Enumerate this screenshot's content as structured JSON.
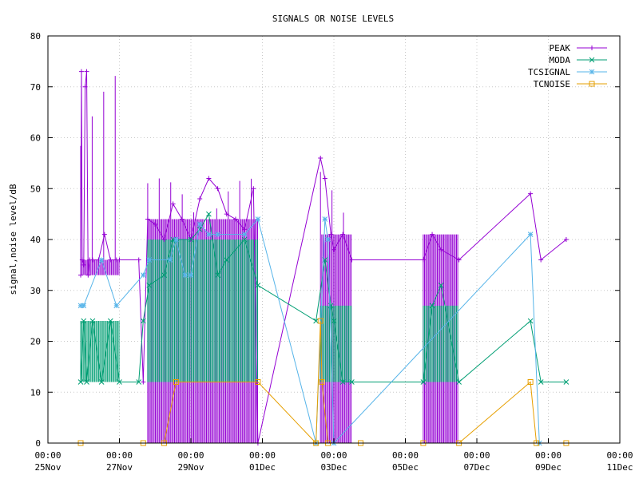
{
  "chart_data": {
    "type": "line",
    "title": "SIGNALS OR NOISE LEVELS",
    "xlabel": "",
    "ylabel": "signal,noise level/dB",
    "xlim": [
      "2023-11-25T00:00",
      "2023-12-11T00:00"
    ],
    "ylim": [
      0,
      80
    ],
    "grid": true,
    "legend_position": "top-right",
    "x_tick_labels": [
      {
        "time": "00:00",
        "date": "25Nov"
      },
      {
        "time": "00:00",
        "date": "27Nov"
      },
      {
        "time": "00:00",
        "date": "29Nov"
      },
      {
        "time": "00:00",
        "date": "01Dec"
      },
      {
        "time": "00:00",
        "date": "03Dec"
      },
      {
        "time": "00:00",
        "date": "05Dec"
      },
      {
        "time": "00:00",
        "date": "07Dec"
      },
      {
        "time": "00:00",
        "date": "09Dec"
      },
      {
        "time": "00:00",
        "date": "11Dec"
      }
    ],
    "y_tick_labels": [
      "0",
      "10",
      "20",
      "30",
      "40",
      "50",
      "60",
      "70",
      "80"
    ],
    "series": [
      {
        "name": "PEAK",
        "color": "#9400d3",
        "marker": "plus",
        "points": [
          [
            "2023-11-25T22:00",
            33
          ],
          [
            "2023-11-25T22:30",
            73
          ],
          [
            "2023-11-25T23:00",
            36
          ],
          [
            "2023-11-26T00:00",
            35
          ],
          [
            "2023-11-26T01:00",
            70
          ],
          [
            "2023-11-26T02:00",
            73
          ],
          [
            "2023-11-26T03:00",
            33
          ],
          [
            "2023-11-26T04:00",
            36
          ],
          [
            "2023-11-26T06:00",
            36
          ],
          [
            "2023-11-26T10:00",
            36
          ],
          [
            "2023-11-26T14:00",
            41
          ],
          [
            "2023-11-26T18:00",
            36
          ],
          [
            "2023-11-26T22:00",
            36
          ],
          [
            "2023-11-27T00:00",
            36
          ],
          [
            "2023-11-27T13:00",
            36
          ],
          [
            "2023-11-27T16:00",
            12
          ],
          [
            "2023-11-27T19:00",
            44
          ],
          [
            "2023-11-28T00:00",
            43
          ],
          [
            "2023-11-28T06:00",
            40
          ],
          [
            "2023-11-28T12:00",
            47
          ],
          [
            "2023-11-28T18:00",
            44
          ],
          [
            "2023-11-29T00:00",
            40
          ],
          [
            "2023-11-29T06:00",
            48
          ],
          [
            "2023-11-29T12:00",
            52
          ],
          [
            "2023-11-29T18:00",
            50
          ],
          [
            "2023-11-30T00:00",
            45
          ],
          [
            "2023-11-30T06:00",
            44
          ],
          [
            "2023-11-30T12:00",
            42
          ],
          [
            "2023-11-30T18:00",
            50
          ],
          [
            "2023-11-30T21:00",
            0
          ],
          [
            "2023-12-02T15:00",
            56
          ],
          [
            "2023-12-02T18:00",
            52
          ],
          [
            "2023-12-02T22:00",
            41
          ],
          [
            "2023-12-03T00:00",
            38
          ],
          [
            "2023-12-03T06:00",
            41
          ],
          [
            "2023-12-03T12:00",
            36
          ],
          [
            "2023-12-05T12:00",
            36
          ],
          [
            "2023-12-05T18:00",
            41
          ],
          [
            "2023-12-06T00:00",
            38
          ],
          [
            "2023-12-06T12:00",
            36
          ],
          [
            "2023-12-08T12:00",
            49
          ],
          [
            "2023-12-08T19:00",
            36
          ],
          [
            "2023-12-09T12:00",
            40
          ]
        ]
      },
      {
        "name": "MODA",
        "color": "#009e73",
        "marker": "cross",
        "points": [
          [
            "2023-11-25T22:00",
            12
          ],
          [
            "2023-11-26T00:00",
            24
          ],
          [
            "2023-11-26T02:00",
            12
          ],
          [
            "2023-11-26T06:00",
            24
          ],
          [
            "2023-11-26T12:00",
            12
          ],
          [
            "2023-11-26T18:00",
            24
          ],
          [
            "2023-11-27T00:00",
            12
          ],
          [
            "2023-11-27T13:00",
            12
          ],
          [
            "2023-11-27T16:00",
            24
          ],
          [
            "2023-11-27T20:00",
            31
          ],
          [
            "2023-11-28T06:00",
            33
          ],
          [
            "2023-11-28T12:00",
            40
          ],
          [
            "2023-11-29T00:00",
            40
          ],
          [
            "2023-11-29T06:00",
            42
          ],
          [
            "2023-11-29T12:00",
            45
          ],
          [
            "2023-11-29T18:00",
            33
          ],
          [
            "2023-11-30T00:00",
            36
          ],
          [
            "2023-11-30T12:00",
            40
          ],
          [
            "2023-11-30T21:00",
            31
          ],
          [
            "2023-12-02T12:00",
            24
          ],
          [
            "2023-12-02T18:00",
            36
          ],
          [
            "2023-12-02T22:00",
            27
          ],
          [
            "2023-12-03T00:00",
            24
          ],
          [
            "2023-12-03T06:00",
            12
          ],
          [
            "2023-12-03T12:00",
            12
          ],
          [
            "2023-12-05T12:00",
            12
          ],
          [
            "2023-12-05T18:00",
            27
          ],
          [
            "2023-12-06T00:00",
            31
          ],
          [
            "2023-12-06T12:00",
            12
          ],
          [
            "2023-12-08T12:00",
            24
          ],
          [
            "2023-12-08T19:00",
            12
          ],
          [
            "2023-12-09T12:00",
            12
          ]
        ]
      },
      {
        "name": "TCSIGNAL",
        "color": "#56b4e9",
        "marker": "star",
        "points": [
          [
            "2023-11-25T22:00",
            27
          ],
          [
            "2023-11-26T00:00",
            27
          ],
          [
            "2023-11-26T12:00",
            36
          ],
          [
            "2023-11-26T22:00",
            27
          ],
          [
            "2023-11-27T16:00",
            33
          ],
          [
            "2023-11-27T20:00",
            36
          ],
          [
            "2023-11-28T10:00",
            36
          ],
          [
            "2023-11-28T14:00",
            40
          ],
          [
            "2023-11-28T20:00",
            33
          ],
          [
            "2023-11-29T00:00",
            33
          ],
          [
            "2023-11-29T06:00",
            43
          ],
          [
            "2023-11-29T12:00",
            41
          ],
          [
            "2023-11-29T18:00",
            41
          ],
          [
            "2023-11-30T12:00",
            41
          ],
          [
            "2023-11-30T21:00",
            44
          ],
          [
            "2023-12-02T12:00",
            0
          ],
          [
            "2023-12-02T18:00",
            44
          ],
          [
            "2023-12-02T20:00",
            40
          ],
          [
            "2023-12-03T00:00",
            0
          ],
          [
            "2023-12-08T12:00",
            41
          ],
          [
            "2023-12-08T18:00",
            0
          ]
        ]
      },
      {
        "name": "TCNOISE",
        "color": "#e69f00",
        "marker": "square",
        "points": [
          [
            "2023-11-25T22:00",
            0
          ],
          [
            "2023-11-27T16:00",
            0
          ],
          [
            "2023-11-28T06:00",
            0
          ],
          [
            "2023-11-28T14:00",
            12
          ],
          [
            "2023-11-30T21:00",
            12
          ],
          [
            "2023-12-02T12:00",
            0
          ],
          [
            "2023-12-02T15:00",
            24
          ],
          [
            "2023-12-02T16:00",
            12
          ],
          [
            "2023-12-02T20:00",
            0
          ],
          [
            "2023-12-03T18:00",
            0
          ],
          [
            "2023-12-05T12:00",
            0
          ],
          [
            "2023-12-06T12:00",
            0
          ],
          [
            "2023-12-08T12:00",
            12
          ],
          [
            "2023-12-08T16:00",
            0
          ],
          [
            "2023-12-09T12:00",
            0
          ]
        ]
      }
    ],
    "dense_bands": [
      {
        "series": "PEAK",
        "from": "2023-11-25T22:00",
        "to": "2023-11-27T00:00",
        "low": 33,
        "high": 36,
        "spike_high": 73
      },
      {
        "series": "MODA",
        "from": "2023-11-25T22:00",
        "to": "2023-11-27T00:00",
        "low": 12,
        "high": 24
      },
      {
        "series": "PEAK",
        "from": "2023-11-27T19:00",
        "to": "2023-11-30T21:00",
        "low": 0,
        "high": 44,
        "spike_high": 52
      },
      {
        "series": "MODA",
        "from": "2023-11-27T19:00",
        "to": "2023-11-30T21:00",
        "low": 12,
        "high": 40
      },
      {
        "series": "PEAK",
        "from": "2023-12-02T15:00",
        "to": "2023-12-03T12:00",
        "low": 0,
        "high": 41,
        "spike_high": 56
      },
      {
        "series": "MODA",
        "from": "2023-12-02T15:00",
        "to": "2023-12-03T12:00",
        "low": 12,
        "high": 27
      },
      {
        "series": "PEAK",
        "from": "2023-12-05T12:00",
        "to": "2023-12-06T12:00",
        "low": 0,
        "high": 41
      },
      {
        "series": "MODA",
        "from": "2023-12-05T12:00",
        "to": "2023-12-06T12:00",
        "low": 12,
        "high": 27
      }
    ]
  }
}
